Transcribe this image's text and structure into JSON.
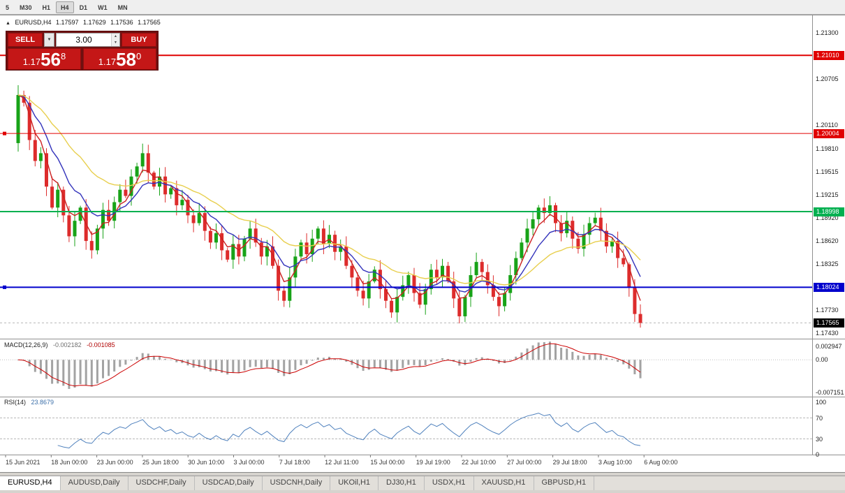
{
  "toolbar": {
    "timeframes": [
      "5",
      "M30",
      "H1",
      "H4",
      "D1",
      "W1",
      "MN"
    ],
    "active_timeframe": "H4"
  },
  "icons": {
    "symbol_marker": "▲",
    "dropdown_arrow": "▼",
    "spin_up": "▲",
    "spin_down": "▼"
  },
  "ohlc_title": {
    "symbol": "EURUSD,H4",
    "open": "1.17597",
    "high": "1.17629",
    "low": "1.17536",
    "close": "1.17565"
  },
  "trade_panel": {
    "sell_label": "SELL",
    "buy_label": "BUY",
    "volume": "3.00",
    "sell_price": {
      "prefix": "1.17",
      "big": "56",
      "sup": "8"
    },
    "buy_price": {
      "prefix": "1.17",
      "big": "58",
      "sup": "0"
    }
  },
  "price_axis": {
    "labels": [
      {
        "text": "1.21300",
        "price": 1.213
      },
      {
        "text": "1.20705",
        "price": 1.20705
      },
      {
        "text": "1.20110",
        "price": 1.2011
      },
      {
        "text": "1.19810",
        "price": 1.1981
      },
      {
        "text": "1.19515",
        "price": 1.19515
      },
      {
        "text": "1.19215",
        "price": 1.19215
      },
      {
        "text": "1.18920",
        "price": 1.1892
      },
      {
        "text": "1.18620",
        "price": 1.1862
      },
      {
        "text": "1.18325",
        "price": 1.18325
      },
      {
        "text": "1.17730",
        "price": 1.1773
      },
      {
        "text": "1.17430",
        "price": 1.1743
      }
    ],
    "tags": [
      {
        "text": "1.21010",
        "price": 1.2101,
        "color": "#e00000",
        "line_width": 2,
        "handle": false
      },
      {
        "text": "1.20004",
        "price": 1.20004,
        "color": "#e00000",
        "line_width": 1,
        "handle": true
      },
      {
        "text": "1.18998",
        "price": 1.18998,
        "color": "#00b050",
        "line_width": 2,
        "handle": false
      },
      {
        "text": "1.18024",
        "price": 1.18024,
        "color": "#0000cc",
        "line_width": 2,
        "handle": true
      }
    ],
    "current": {
      "text": "1.17565",
      "price": 1.17565,
      "color": "#000000"
    }
  },
  "chart_data": {
    "type": "candlestick",
    "symbol": "EURUSD",
    "timeframe": "H4",
    "visible_price_range": [
      1.1738,
      1.2148
    ],
    "current_price": 1.17565,
    "first_open": 1.1988,
    "closes": [
      1.205,
      1.204,
      1.1992,
      1.1965,
      1.1975,
      1.1932,
      1.1905,
      1.1928,
      1.1895,
      1.1868,
      1.1888,
      1.1905,
      1.1862,
      1.185,
      1.1878,
      1.1902,
      1.1888,
      1.1912,
      1.1928,
      1.192,
      1.1945,
      1.1958,
      1.1975,
      1.195,
      1.1932,
      1.1945,
      1.1922,
      1.193,
      1.1908,
      1.1915,
      1.1895,
      1.1885,
      1.1898,
      1.1875,
      1.186,
      1.1872,
      1.185,
      1.1838,
      1.1858,
      1.1842,
      1.1865,
      1.1878,
      1.186,
      1.1842,
      1.1855,
      1.183,
      1.1798,
      1.1785,
      1.1815,
      1.1842,
      1.186,
      1.1845,
      1.1865,
      1.1878,
      1.1858,
      1.187,
      1.1848,
      1.1855,
      1.183,
      1.1815,
      1.1798,
      1.1788,
      1.181,
      1.1825,
      1.18,
      1.1785,
      1.177,
      1.179,
      1.1805,
      1.1818,
      1.1795,
      1.178,
      1.18,
      1.1825,
      1.1815,
      1.183,
      1.181,
      1.1788,
      1.1765,
      1.179,
      1.1818,
      1.1835,
      1.1822,
      1.1805,
      1.179,
      1.1778,
      1.1795,
      1.1818,
      1.184,
      1.186,
      1.1878,
      1.189,
      1.1905,
      1.1898,
      1.1908,
      1.1885,
      1.1872,
      1.1888,
      1.1865,
      1.1852,
      1.187,
      1.1885,
      1.1892,
      1.1875,
      1.1855,
      1.1862,
      1.184,
      1.1832,
      1.1802,
      1.1768,
      1.17565
    ],
    "candle_colors": {
      "up": "#18a318",
      "down": "#dd2c2c"
    },
    "moving_averages": [
      {
        "period": 4,
        "color": "#cc2020"
      },
      {
        "period": 9,
        "color": "#3333bb"
      },
      {
        "period": 22,
        "color": "#e8cf4e"
      }
    ]
  },
  "macd_panel": {
    "label": "MACD(12,26,9)",
    "value": "-0.002182",
    "signal_value": "-0.001085",
    "axis_labels": [
      {
        "text": "0.002947",
        "value": 0.002947
      },
      {
        "text": "0.00",
        "value": 0
      },
      {
        "text": "-0.007151",
        "value": -0.007151
      }
    ],
    "range": [
      -0.0078,
      0.0042
    ],
    "histogram_color": "#a3a3a3",
    "signal_color": "#cc0000",
    "render_periods": {
      "fast": 5,
      "slow": 17,
      "signal": 4
    }
  },
  "rsi_panel": {
    "label": "RSI(14)",
    "value": "23.8679",
    "axis_labels": [
      {
        "text": "100",
        "value": 100
      },
      {
        "text": "70",
        "value": 70
      },
      {
        "text": "30",
        "value": 30
      },
      {
        "text": "0",
        "value": 0
      }
    ],
    "levels": [
      70,
      30
    ],
    "line_color": "#4f81bd",
    "render_period": 7
  },
  "time_axis": {
    "labels": [
      "15 Jun 2021",
      "18 Jun 00:00",
      "23 Jun 00:00",
      "25 Jun 18:00",
      "30 Jun 10:00",
      "3 Jul 00:00",
      "7 Jul 18:00",
      "12 Jul 11:00",
      "15 Jul 00:00",
      "19 Jul 19:00",
      "22 Jul 10:00",
      "27 Jul 00:00",
      "29 Jul 18:00",
      "3 Aug 10:00",
      "6 Aug 00:00"
    ]
  },
  "tabs": [
    {
      "label": "EURUSD,H4",
      "active": true
    },
    {
      "label": "AUDUSD,Daily",
      "active": false
    },
    {
      "label": "USDCHF,Daily",
      "active": false
    },
    {
      "label": "USDCAD,Daily",
      "active": false
    },
    {
      "label": "USDCNH,Daily",
      "active": false
    },
    {
      "label": "UKOil,H1",
      "active": false
    },
    {
      "label": "DJ30,H1",
      "active": false
    },
    {
      "label": "USDX,H1",
      "active": false
    },
    {
      "label": "XAUUSD,H1",
      "active": false
    },
    {
      "label": "GBPUSD,H1",
      "active": false
    }
  ]
}
